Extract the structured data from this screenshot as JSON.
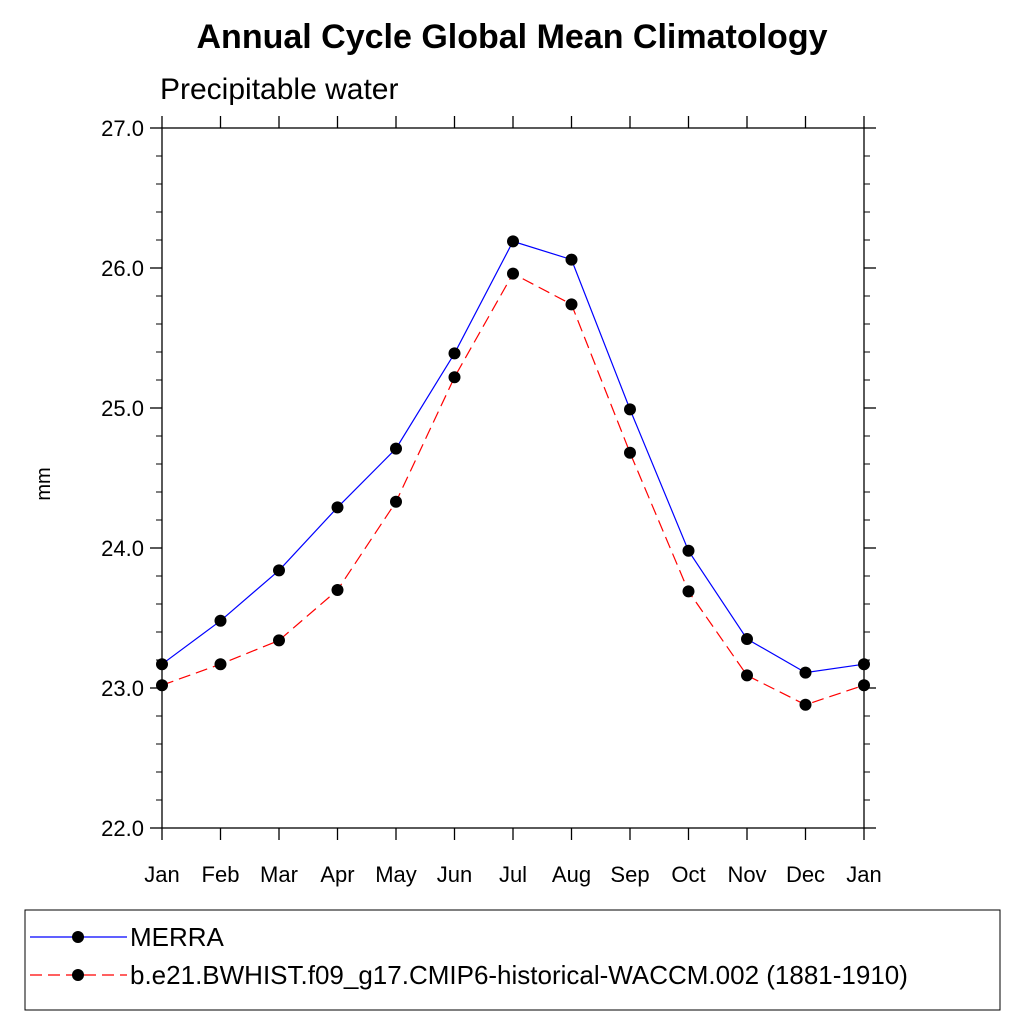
{
  "chart_data": {
    "type": "line",
    "title": "Annual Cycle Global Mean Climatology",
    "subtitle": "Precipitable water",
    "ylabel": "mm",
    "xlabel": "",
    "ylim": [
      22.0,
      27.0
    ],
    "yticks": [
      "22.0",
      "23.0",
      "24.0",
      "25.0",
      "26.0",
      "27.0"
    ],
    "categories": [
      "Jan",
      "Feb",
      "Mar",
      "Apr",
      "May",
      "Jun",
      "Jul",
      "Aug",
      "Sep",
      "Oct",
      "Nov",
      "Dec",
      "Jan"
    ],
    "series": [
      {
        "name": "MERRA",
        "color": "#0000ff",
        "dash": "solid",
        "marker": "filled-circle",
        "values": [
          23.17,
          23.48,
          23.84,
          24.29,
          24.71,
          25.39,
          26.19,
          26.06,
          24.99,
          23.98,
          23.35,
          23.11,
          23.17
        ]
      },
      {
        "name": "b.e21.BWHIST.f09_g17.CMIP6-historical-WACCM.002 (1881-1910)",
        "color": "#ff0000",
        "dash": "dashed",
        "marker": "filled-circle",
        "values": [
          23.02,
          23.17,
          23.34,
          23.7,
          24.33,
          25.22,
          25.96,
          25.74,
          24.68,
          23.69,
          23.09,
          22.88,
          23.02
        ]
      }
    ],
    "grid": false,
    "legend_position": "bottom"
  }
}
